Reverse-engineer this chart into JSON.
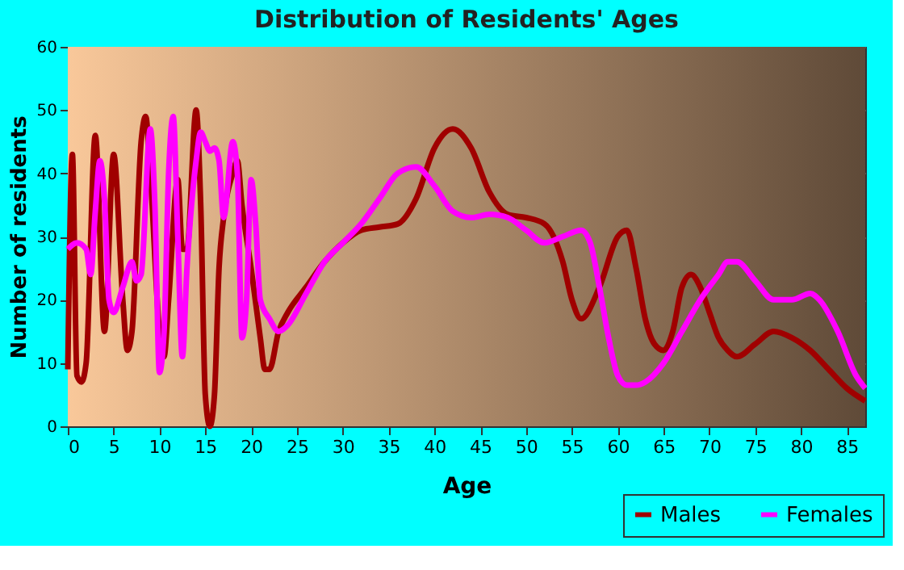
{
  "chart_data": {
    "type": "line",
    "title": "Distribution of Residents' Ages",
    "xlabel": "Age",
    "ylabel": "Number of residents",
    "xlim": [
      0,
      87
    ],
    "ylim": [
      0,
      60
    ],
    "xticks": [
      0,
      5,
      10,
      15,
      20,
      25,
      30,
      35,
      40,
      45,
      50,
      55,
      60,
      65,
      70,
      75,
      80,
      85
    ],
    "yticks": [
      0,
      10,
      20,
      30,
      40,
      50,
      60
    ],
    "grid": true,
    "legend": "bottom right",
    "series": [
      {
        "name": "Males",
        "color": "#a00000",
        "x": [
          0,
          0.5,
          1,
          1.5,
          2,
          3,
          4,
          5,
          6,
          6.5,
          7,
          8,
          8.5,
          9,
          10,
          10.5,
          11,
          12,
          12.5,
          13,
          14,
          14.5,
          15,
          15.5,
          16,
          16.5,
          17,
          18,
          18.5,
          19,
          20,
          21,
          21.5,
          22,
          23,
          24,
          26,
          28,
          30,
          32,
          34,
          36,
          38,
          40,
          42,
          44,
          46,
          48,
          50,
          52,
          54,
          55,
          56,
          58,
          60,
          61,
          62,
          63,
          64,
          65,
          66,
          67,
          68,
          69,
          70,
          71,
          72,
          73,
          75,
          77,
          79,
          81,
          83,
          85,
          87
        ],
        "values": [
          9,
          43,
          8,
          7,
          10,
          46,
          15,
          43,
          20,
          12,
          15,
          45,
          49,
          40,
          15,
          11,
          20,
          39,
          28,
          28,
          50,
          35,
          5,
          0,
          5,
          25,
          33,
          40,
          42,
          35,
          25,
          14,
          9,
          9,
          15,
          18,
          22,
          26,
          29,
          31,
          31.5,
          32,
          36,
          44,
          47,
          44,
          37,
          33.5,
          33,
          32,
          26,
          20,
          17,
          22,
          30,
          31,
          25,
          17,
          13,
          12,
          15,
          22,
          24,
          22,
          18,
          14,
          12,
          11,
          13,
          15,
          14,
          12,
          9,
          6,
          4
        ]
      },
      {
        "name": "Females",
        "color": "#ff00ff",
        "x": [
          0,
          1,
          2,
          2.5,
          3,
          3.5,
          4,
          4.5,
          5,
          6,
          7,
          7.5,
          8,
          9,
          9.5,
          10,
          10.5,
          11,
          11.5,
          12,
          12.5,
          13,
          14,
          14.5,
          15,
          15.5,
          16,
          16.5,
          17,
          18,
          18.5,
          19,
          19.5,
          20,
          20.5,
          21,
          22,
          23,
          24,
          26,
          28,
          30,
          32,
          34,
          36,
          38,
          40,
          42,
          44,
          46,
          48,
          50,
          52,
          54,
          56,
          57,
          58,
          59,
          60,
          61,
          62,
          63,
          65,
          67,
          69,
          71,
          72,
          73,
          75,
          77,
          79,
          81,
          82,
          84,
          86,
          87
        ],
        "values": [
          28,
          29,
          28,
          24,
          34,
          42,
          36,
          20,
          18,
          22,
          26,
          23,
          24,
          47,
          35,
          8.5,
          15,
          40,
          49,
          30,
          11,
          25,
          42,
          46.5,
          45,
          43.5,
          44,
          42,
          33,
          45,
          40,
          14,
          20,
          39,
          32,
          20,
          17,
          15,
          16,
          21,
          26,
          29,
          32,
          36,
          40,
          41,
          38,
          34,
          33,
          33.5,
          33,
          31,
          29,
          30,
          31,
          29,
          22,
          14,
          8,
          6.5,
          6.5,
          7,
          10,
          15,
          20,
          24,
          26,
          26,
          23,
          20,
          20,
          21,
          20,
          15,
          8,
          6
        ]
      }
    ]
  }
}
